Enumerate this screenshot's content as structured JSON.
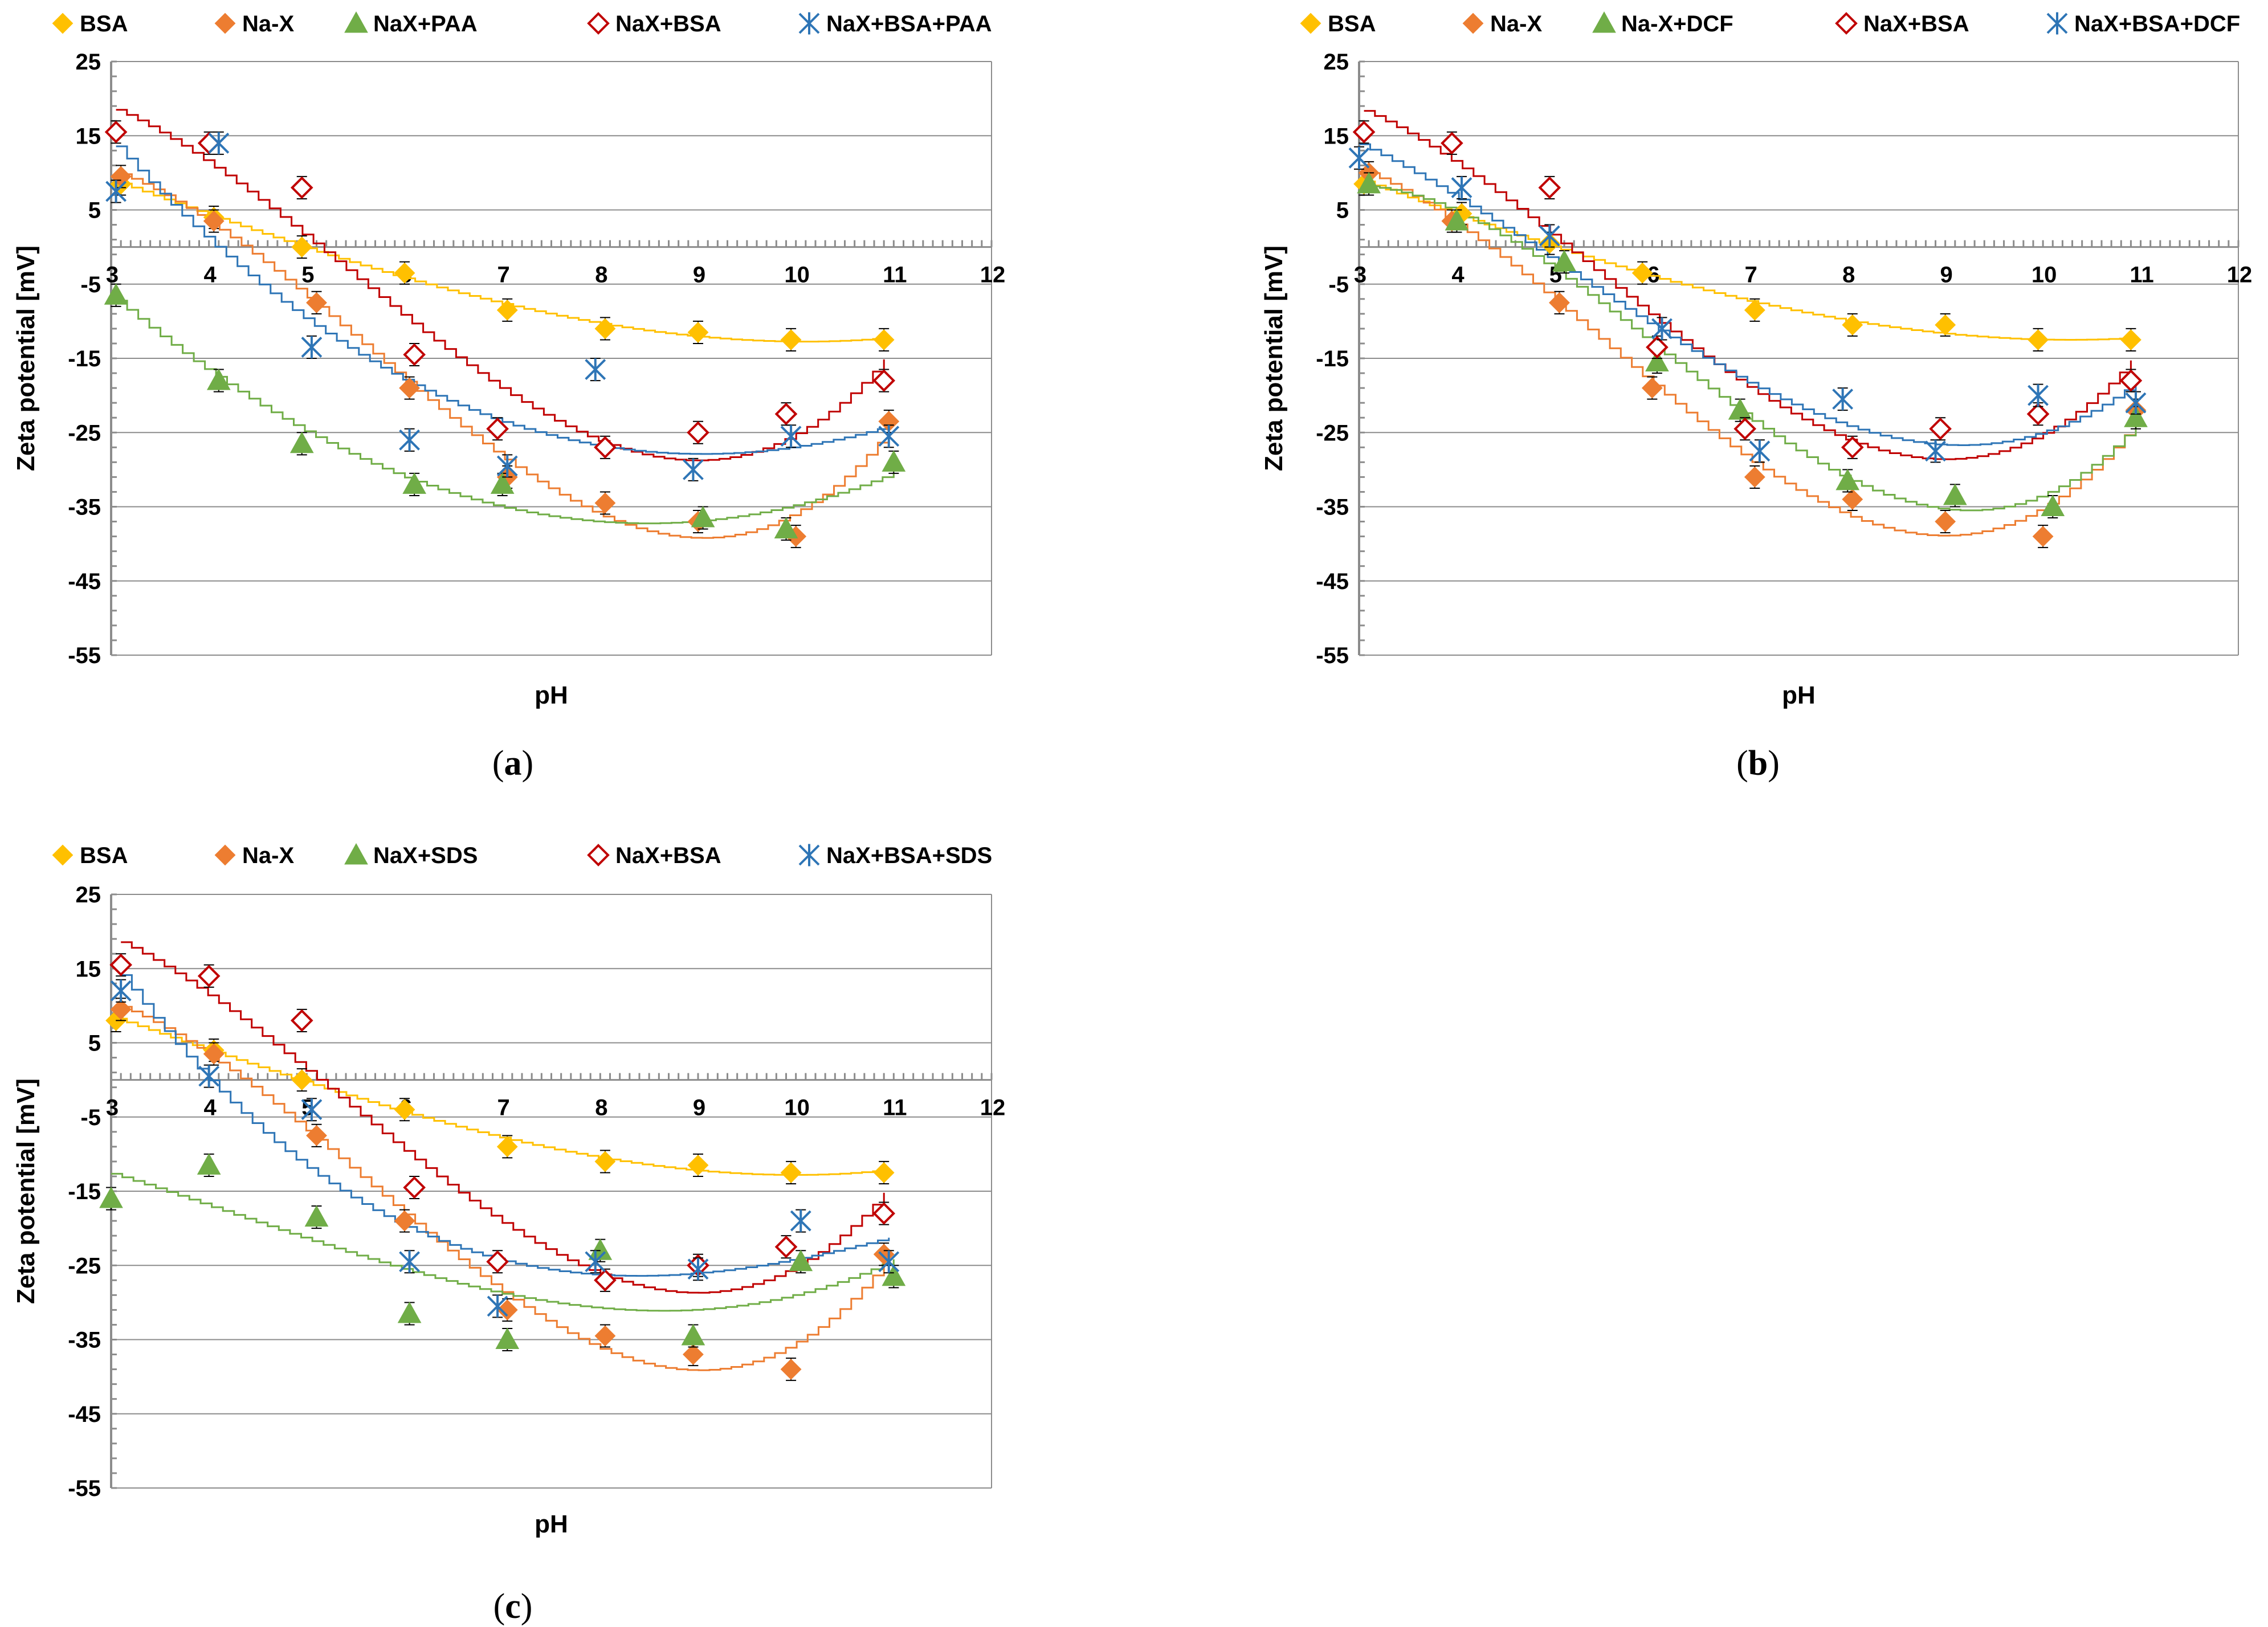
{
  "chart_data": [
    {
      "type": "scatter",
      "caption_letter": "a",
      "xlabel": "pH",
      "ylabel": "Zeta potential [mV]",
      "xlim": [
        3,
        12
      ],
      "ylim": [
        -55,
        25
      ],
      "xticks": [
        "3",
        "4",
        "5",
        "6",
        "7",
        "8",
        "9",
        "10",
        "11",
        "12"
      ],
      "yticks": [
        "25",
        "15",
        "5",
        "-5",
        "-15",
        "-25",
        "-35",
        "-45",
        "-55"
      ],
      "grid": true,
      "legend": "top",
      "series": [
        {
          "name": "BSA",
          "marker": "diamond",
          "color": "#FFC000",
          "x": [
            3.1,
            4.05,
            4.95,
            6.0,
            7.05,
            8.05,
            9.0,
            9.95,
            10.9
          ],
          "y": [
            8.5,
            4.0,
            0.0,
            -3.5,
            -8.5,
            -11.0,
            -11.5,
            -12.5,
            -12.5
          ]
        },
        {
          "name": "Na-X",
          "marker": "diamond",
          "color": "#ED7D31",
          "x": [
            3.1,
            4.05,
            5.1,
            6.05,
            7.05,
            8.05,
            9.0,
            10.0,
            10.95
          ],
          "y": [
            9.5,
            3.5,
            -7.5,
            -19.0,
            -31.0,
            -34.5,
            -37.0,
            -39.0,
            -23.5
          ]
        },
        {
          "name": "NaX+PAA",
          "marker": "triangle",
          "color": "#70AD47",
          "x": [
            3.05,
            4.1,
            4.95,
            6.1,
            7.0,
            9.05,
            9.9,
            11.0
          ],
          "y": [
            -6.5,
            -18.0,
            -26.5,
            -32.0,
            -32.0,
            -36.5,
            -38.0,
            -29.0
          ]
        },
        {
          "name": "NaX+BSA",
          "marker": "hollow-diamond",
          "color": "#C00000",
          "x": [
            3.05,
            4.0,
            4.95,
            6.1,
            6.95,
            8.05,
            9.0,
            9.9,
            10.9
          ],
          "y": [
            15.5,
            14.0,
            8.0,
            -14.5,
            -24.5,
            -27.0,
            -25.0,
            -22.5,
            -18.0
          ]
        },
        {
          "name": "NaX+BSA+PAA",
          "marker": "asterisk",
          "color": "#2E75B6",
          "x": [
            3.05,
            4.1,
            5.05,
            6.05,
            7.05,
            7.95,
            8.95,
            9.95,
            10.95
          ],
          "y": [
            7.5,
            14.0,
            -13.5,
            -26.0,
            -29.5,
            -16.5,
            -30.0,
            -25.5,
            -25.5
          ]
        }
      ]
    },
    {
      "type": "scatter",
      "caption_letter": "b",
      "xlabel": "pH",
      "ylabel": "Zeta potential [mV]",
      "xlim": [
        3,
        12
      ],
      "ylim": [
        -55,
        25
      ],
      "xticks": [
        "3",
        "4",
        "5",
        "6",
        "7",
        "8",
        "9",
        "10",
        "11",
        "12"
      ],
      "yticks": [
        "25",
        "15",
        "5",
        "-5",
        "-15",
        "-25",
        "-35",
        "-45",
        "-55"
      ],
      "grid": true,
      "legend": "top",
      "series": [
        {
          "name": "BSA",
          "marker": "diamond",
          "color": "#FFC000",
          "x": [
            3.05,
            4.05,
            4.95,
            5.9,
            7.05,
            8.05,
            9.0,
            9.95,
            10.9
          ],
          "y": [
            8.5,
            4.5,
            0.5,
            -3.5,
            -8.5,
            -10.5,
            -10.5,
            -12.5,
            -12.5
          ]
        },
        {
          "name": "Na-X",
          "marker": "diamond",
          "color": "#ED7D31",
          "x": [
            3.1,
            3.95,
            5.05,
            6.0,
            7.05,
            8.05,
            9.0,
            10.0,
            10.95
          ],
          "y": [
            10.0,
            3.5,
            -7.5,
            -19.0,
            -31.0,
            -34.0,
            -37.0,
            -39.0,
            -22.0
          ]
        },
        {
          "name": "Na-X+DCF",
          "marker": "triangle",
          "color": "#70AD47",
          "x": [
            3.1,
            4.0,
            5.1,
            6.05,
            6.9,
            8.0,
            9.1,
            10.1,
            10.95
          ],
          "y": [
            8.5,
            3.5,
            -2.0,
            -15.5,
            -22.0,
            -31.5,
            -33.5,
            -35.0,
            -23.0
          ]
        },
        {
          "name": "NaX+BSA",
          "marker": "hollow-diamond",
          "color": "#C00000",
          "x": [
            3.05,
            3.95,
            4.95,
            6.05,
            6.95,
            8.05,
            8.95,
            9.95,
            10.9
          ],
          "y": [
            15.5,
            14.0,
            8.0,
            -13.5,
            -24.5,
            -27.0,
            -24.5,
            -22.5,
            -18.0
          ]
        },
        {
          "name": "NaX+BSA+DCF",
          "marker": "asterisk",
          "color": "#2E75B6",
          "x": [
            3.0,
            4.05,
            4.95,
            6.1,
            7.1,
            7.95,
            8.9,
            9.95,
            10.95
          ],
          "y": [
            12.0,
            8.0,
            1.5,
            -11.0,
            -27.5,
            -20.5,
            -27.5,
            -20.0,
            -21.0
          ]
        }
      ]
    },
    {
      "type": "scatter",
      "caption_letter": "c",
      "xlabel": "pH",
      "ylabel": "Zeta potential [mV]",
      "xlim": [
        3,
        12
      ],
      "ylim": [
        -55,
        25
      ],
      "xticks": [
        "3",
        "4",
        "5",
        "6",
        "7",
        "8",
        "9",
        "10",
        "11",
        "12"
      ],
      "yticks": [
        "25",
        "15",
        "5",
        "-5",
        "-15",
        "-25",
        "-35",
        "-45",
        "-55"
      ],
      "grid": true,
      "legend": "top",
      "series": [
        {
          "name": "BSA",
          "marker": "diamond",
          "color": "#FFC000",
          "x": [
            3.05,
            4.05,
            4.95,
            6.0,
            7.05,
            8.05,
            9.0,
            9.95,
            10.9
          ],
          "y": [
            8.0,
            4.0,
            0.0,
            -4.0,
            -9.0,
            -11.0,
            -11.5,
            -12.5,
            -12.5
          ]
        },
        {
          "name": "Na-X",
          "marker": "diamond",
          "color": "#ED7D31",
          "x": [
            3.1,
            4.05,
            5.1,
            6.0,
            7.05,
            8.05,
            8.95,
            9.95,
            10.9
          ],
          "y": [
            9.5,
            3.5,
            -7.5,
            -19.0,
            -31.0,
            -34.5,
            -37.0,
            -39.0,
            -23.5
          ]
        },
        {
          "name": "NaX+SDS",
          "marker": "triangle",
          "color": "#70AD47",
          "x": [
            3.0,
            4.0,
            5.1,
            6.05,
            7.05,
            8.0,
            8.95,
            10.05,
            11.0
          ],
          "y": [
            -16.0,
            -11.5,
            -18.5,
            -31.5,
            -35.0,
            -23.0,
            -34.5,
            -24.5,
            -26.5
          ]
        },
        {
          "name": "NaX+BSA",
          "marker": "hollow-diamond",
          "color": "#C00000",
          "x": [
            3.1,
            4.0,
            4.95,
            6.1,
            6.95,
            8.05,
            9.0,
            9.9,
            10.9
          ],
          "y": [
            15.5,
            14.0,
            8.0,
            -14.5,
            -24.5,
            -27.0,
            -25.0,
            -22.5,
            -18.0
          ]
        },
        {
          "name": "NaX+BSA+SDS",
          "marker": "asterisk",
          "color": "#2E75B6",
          "x": [
            3.1,
            4.0,
            5.05,
            6.05,
            6.95,
            7.95,
            9.0,
            10.05,
            10.95
          ],
          "y": [
            12.0,
            0.5,
            -4.0,
            -24.5,
            -30.5,
            -24.5,
            -25.5,
            -19.0,
            -24.5
          ]
        }
      ]
    }
  ]
}
